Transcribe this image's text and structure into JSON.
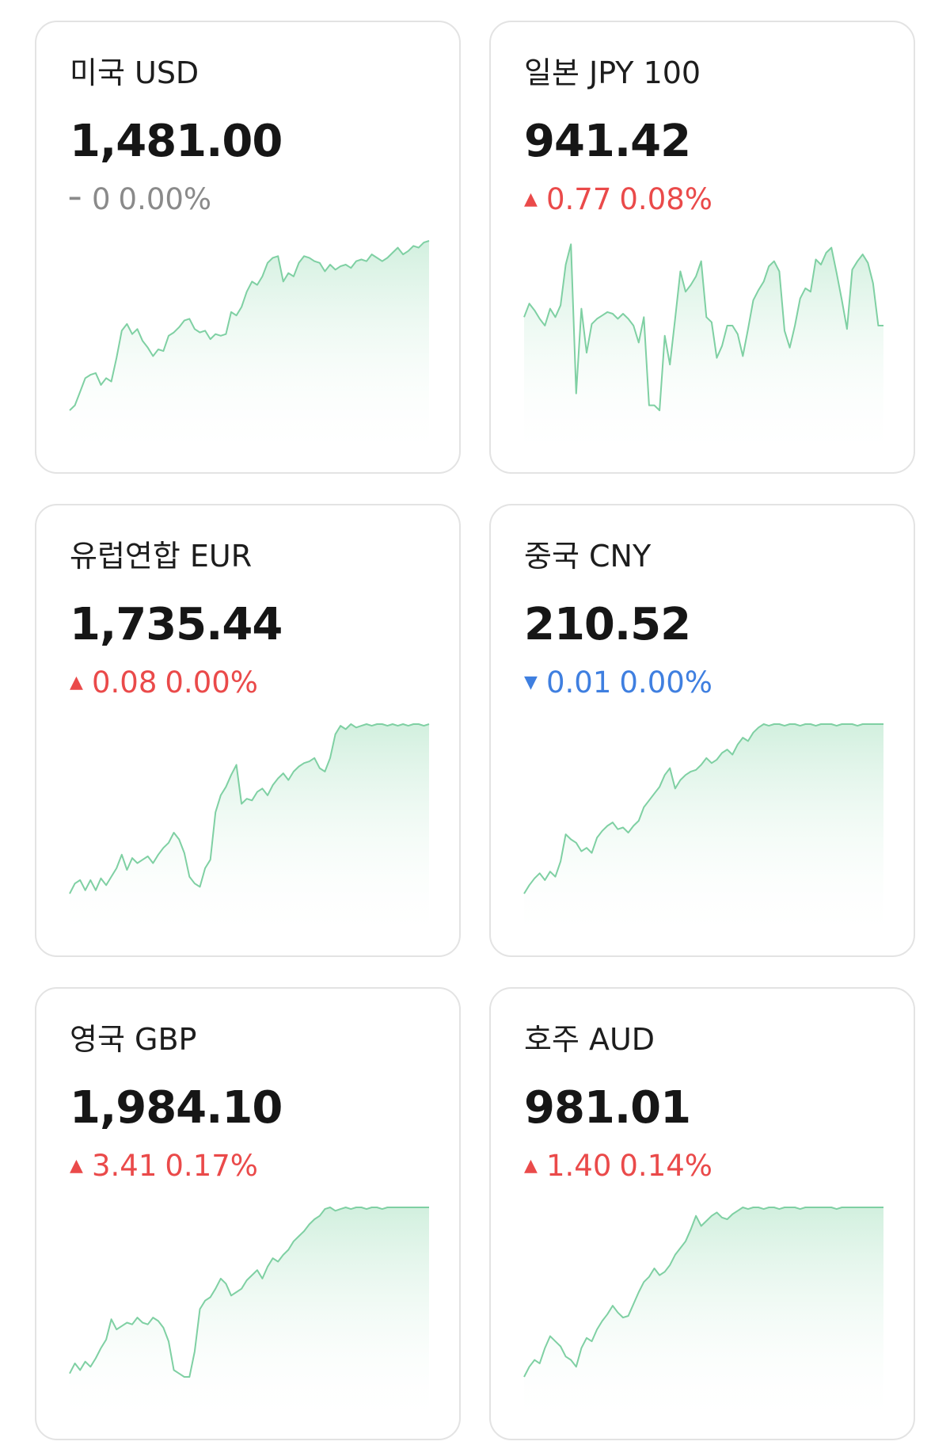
{
  "colors": {
    "up": "#ea4a4a",
    "down": "#3f7fe0",
    "flat": "#8a8a8a",
    "line": "#7fd0a3",
    "fill": "#cdeedb"
  },
  "currencies": [
    {
      "name": "미국 USD",
      "rate": "1,481.00",
      "direction": "flat",
      "direction_icon": "dash-icon",
      "arrow": "━",
      "change": "0",
      "percent": "0.00%",
      "spark": [
        0.0,
        0.03,
        0.11,
        0.19,
        0.21,
        0.22,
        0.15,
        0.19,
        0.17,
        0.31,
        0.47,
        0.51,
        0.45,
        0.48,
        0.41,
        0.37,
        0.32,
        0.36,
        0.35,
        0.44,
        0.46,
        0.49,
        0.53,
        0.54,
        0.48,
        0.46,
        0.47,
        0.42,
        0.45,
        0.44,
        0.45,
        0.58,
        0.56,
        0.61,
        0.7,
        0.76,
        0.74,
        0.79,
        0.87,
        0.9,
        0.91,
        0.76,
        0.81,
        0.79,
        0.87,
        0.91,
        0.9,
        0.88,
        0.87,
        0.82,
        0.86,
        0.83,
        0.85,
        0.86,
        0.84,
        0.88,
        0.89,
        0.88,
        0.92,
        0.9,
        0.88,
        0.9,
        0.93,
        0.96,
        0.92,
        0.94,
        0.97,
        0.96,
        0.99,
        1.0
      ]
    },
    {
      "name": "일본 JPY 100",
      "rate": "941.42",
      "direction": "up",
      "direction_icon": "triangle-up-icon",
      "arrow": "▲",
      "change": "0.77",
      "percent": "0.08%",
      "spark": [
        0.55,
        0.63,
        0.59,
        0.54,
        0.5,
        0.6,
        0.55,
        0.62,
        0.86,
        0.98,
        0.1,
        0.6,
        0.34,
        0.51,
        0.54,
        0.56,
        0.58,
        0.57,
        0.54,
        0.57,
        0.54,
        0.5,
        0.4,
        0.55,
        0.03,
        0.03,
        0.0,
        0.44,
        0.27,
        0.54,
        0.82,
        0.7,
        0.74,
        0.79,
        0.88,
        0.55,
        0.52,
        0.31,
        0.38,
        0.5,
        0.5,
        0.45,
        0.32,
        0.48,
        0.65,
        0.71,
        0.76,
        0.85,
        0.88,
        0.82,
        0.47,
        0.37,
        0.5,
        0.66,
        0.72,
        0.7,
        0.89,
        0.86,
        0.93,
        0.96,
        0.81,
        0.65,
        0.48,
        0.83,
        0.88,
        0.92,
        0.87,
        0.75,
        0.5,
        0.5
      ]
    },
    {
      "name": "유럽연합 EUR",
      "rate": "1,735.44",
      "direction": "up",
      "direction_icon": "triangle-up-icon",
      "arrow": "▲",
      "change": "0.08",
      "percent": "0.00%",
      "spark": [
        0.0,
        0.06,
        0.08,
        0.02,
        0.08,
        0.02,
        0.09,
        0.05,
        0.1,
        0.15,
        0.23,
        0.14,
        0.21,
        0.18,
        0.2,
        0.22,
        0.18,
        0.23,
        0.27,
        0.3,
        0.36,
        0.32,
        0.24,
        0.1,
        0.06,
        0.04,
        0.15,
        0.2,
        0.48,
        0.58,
        0.63,
        0.7,
        0.76,
        0.53,
        0.56,
        0.55,
        0.6,
        0.62,
        0.58,
        0.64,
        0.68,
        0.71,
        0.67,
        0.72,
        0.75,
        0.77,
        0.78,
        0.8,
        0.74,
        0.72,
        0.8,
        0.94,
        0.99,
        0.97,
        1.0,
        0.98,
        0.99,
        1.0,
        0.99,
        1.0,
        1.0,
        0.99,
        1.0,
        0.99,
        1.0,
        0.99,
        1.0,
        1.0,
        0.99,
        1.0
      ]
    },
    {
      "name": "중국 CNY",
      "rate": "210.52",
      "direction": "down",
      "direction_icon": "triangle-down-icon",
      "arrow": "▼",
      "change": "0.01",
      "percent": "0.00%",
      "spark": [
        0.0,
        0.05,
        0.09,
        0.12,
        0.08,
        0.13,
        0.1,
        0.19,
        0.35,
        0.32,
        0.3,
        0.25,
        0.27,
        0.24,
        0.33,
        0.37,
        0.4,
        0.42,
        0.38,
        0.39,
        0.36,
        0.4,
        0.43,
        0.51,
        0.55,
        0.59,
        0.63,
        0.7,
        0.74,
        0.62,
        0.67,
        0.7,
        0.72,
        0.73,
        0.76,
        0.8,
        0.77,
        0.79,
        0.83,
        0.85,
        0.82,
        0.88,
        0.92,
        0.9,
        0.95,
        0.98,
        1.0,
        0.99,
        1.0,
        1.0,
        0.99,
        1.0,
        1.0,
        0.99,
        1.0,
        1.0,
        0.99,
        1.0,
        1.0,
        1.0,
        0.99,
        1.0,
        1.0,
        1.0,
        0.99,
        1.0,
        1.0,
        1.0,
        1.0,
        1.0
      ]
    },
    {
      "name": "영국 GBP",
      "rate": "1,984.10",
      "direction": "up",
      "direction_icon": "triangle-up-icon",
      "arrow": "▲",
      "change": "3.41",
      "percent": "0.17%",
      "spark": [
        0.02,
        0.08,
        0.04,
        0.09,
        0.06,
        0.11,
        0.17,
        0.22,
        0.34,
        0.28,
        0.3,
        0.32,
        0.31,
        0.35,
        0.32,
        0.31,
        0.35,
        0.33,
        0.29,
        0.21,
        0.04,
        0.02,
        0.0,
        0.0,
        0.15,
        0.4,
        0.45,
        0.47,
        0.52,
        0.58,
        0.55,
        0.48,
        0.5,
        0.52,
        0.57,
        0.6,
        0.63,
        0.58,
        0.65,
        0.7,
        0.68,
        0.72,
        0.75,
        0.8,
        0.83,
        0.86,
        0.9,
        0.93,
        0.95,
        0.99,
        1.0,
        0.98,
        0.99,
        1.0,
        0.99,
        1.0,
        1.0,
        0.99,
        1.0,
        1.0,
        0.99,
        1.0,
        1.0,
        1.0,
        1.0,
        1.0,
        1.0,
        1.0,
        1.0,
        1.0
      ]
    },
    {
      "name": "호주 AUD",
      "rate": "981.01",
      "direction": "up",
      "direction_icon": "triangle-up-icon",
      "arrow": "▲",
      "change": "1.40",
      "percent": "0.14%",
      "spark": [
        0.0,
        0.06,
        0.1,
        0.08,
        0.17,
        0.24,
        0.21,
        0.18,
        0.12,
        0.1,
        0.06,
        0.17,
        0.23,
        0.21,
        0.28,
        0.33,
        0.37,
        0.42,
        0.38,
        0.35,
        0.36,
        0.43,
        0.5,
        0.56,
        0.59,
        0.64,
        0.6,
        0.62,
        0.66,
        0.72,
        0.76,
        0.8,
        0.87,
        0.95,
        0.89,
        0.92,
        0.95,
        0.97,
        0.94,
        0.93,
        0.96,
        0.98,
        1.0,
        0.99,
        1.0,
        1.0,
        0.99,
        1.0,
        1.0,
        0.99,
        1.0,
        1.0,
        1.0,
        0.99,
        1.0,
        1.0,
        1.0,
        1.0,
        1.0,
        1.0,
        0.99,
        1.0,
        1.0,
        1.0,
        1.0,
        1.0,
        1.0,
        1.0,
        1.0,
        1.0
      ]
    }
  ]
}
